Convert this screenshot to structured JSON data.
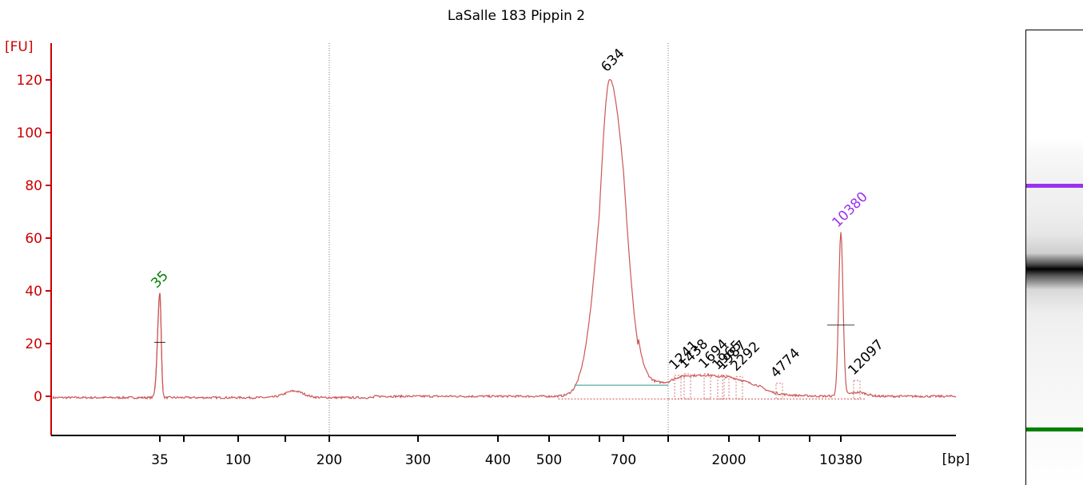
{
  "chart_data": {
    "type": "line",
    "title": "LaSalle 183 Pippin 2",
    "ylabel": "[FU]",
    "xlabel": "[bp]",
    "ylim": [
      -13,
      134
    ],
    "yticks": [
      0,
      20,
      40,
      60,
      80,
      100,
      120
    ],
    "xtick_labels": [
      "35",
      "100",
      "200",
      "300",
      "400",
      "500",
      "700",
      "2000",
      "10380"
    ],
    "grid": false,
    "peaks": [
      {
        "label": "35",
        "bp": 35,
        "fu": 39,
        "color": "#008000"
      },
      {
        "label": "634",
        "bp": 634,
        "fu": 121,
        "color": "#000000"
      },
      {
        "label": "1241",
        "bp": 1241,
        "fu": 8,
        "color": "#000000"
      },
      {
        "label": "1438",
        "bp": 1438,
        "fu": 8.5,
        "color": "#000000"
      },
      {
        "label": "1694",
        "bp": 1694,
        "fu": 8.5,
        "color": "#000000"
      },
      {
        "label": "1965",
        "bp": 1965,
        "fu": 8,
        "color": "#000000"
      },
      {
        "label": "1987",
        "bp": 1987,
        "fu": 8,
        "color": "#000000"
      },
      {
        "label": "2292",
        "bp": 2292,
        "fu": 7.5,
        "color": "#000000"
      },
      {
        "label": "4774",
        "bp": 4774,
        "fu": 5,
        "color": "#000000"
      },
      {
        "label": "10380",
        "bp": 10380,
        "fu": 62,
        "color": "#9933ee"
      },
      {
        "label": "12097",
        "bp": 12097,
        "fu": 6,
        "color": "#000000"
      }
    ],
    "region": {
      "from_bp": 550,
      "to_bp": 1000,
      "level_fu": 4.2
    }
  },
  "colors": {
    "axis": "#cc0000",
    "trace": "#cc5555",
    "region_line": "#55aaaa",
    "upper_marker": "#9933ee",
    "lower_marker": "#008000",
    "gel_band": "#000000"
  }
}
